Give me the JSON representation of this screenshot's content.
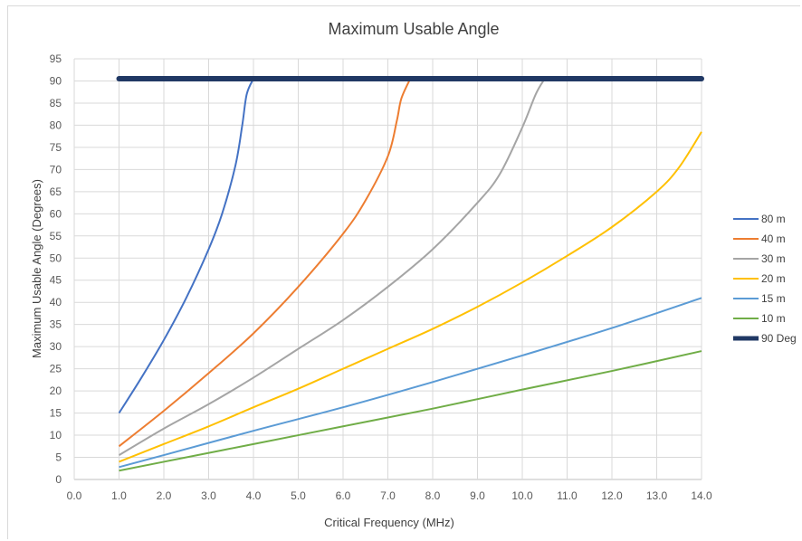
{
  "chart_data": {
    "type": "line",
    "title": "Maximum Usable Angle",
    "xlabel": "Critical Frequency  (MHz)",
    "ylabel": "Maximum Usable Angle  (Degrees)",
    "xlim": [
      0,
      14
    ],
    "ylim": [
      0,
      95
    ],
    "x_ticks": [
      "0.0",
      "1.0",
      "2.0",
      "3.0",
      "4.0",
      "5.0",
      "6.0",
      "7.0",
      "8.0",
      "9.0",
      "10.0",
      "11.0",
      "12.0",
      "13.0",
      "14.0"
    ],
    "y_ticks": [
      "0",
      "5",
      "10",
      "15",
      "20",
      "25",
      "30",
      "35",
      "40",
      "45",
      "50",
      "55",
      "60",
      "65",
      "70",
      "75",
      "80",
      "85",
      "90",
      "95"
    ],
    "grid": true,
    "legend_position": "right",
    "series": [
      {
        "name": "80 m",
        "color": "#4472C4",
        "width": 2,
        "x": [
          1.0,
          1.5,
          2.0,
          2.5,
          3.0,
          3.3,
          3.6,
          3.75,
          3.85,
          4.0
        ],
        "y": [
          15,
          23,
          31.5,
          41,
          52,
          60,
          71,
          80,
          87,
          90.5
        ]
      },
      {
        "name": "40 m",
        "color": "#ED7D31",
        "width": 2,
        "x": [
          1.0,
          2.0,
          3.0,
          4.0,
          5.0,
          6.0,
          6.5,
          7.0,
          7.2,
          7.3,
          7.5
        ],
        "y": [
          7.5,
          15.5,
          24,
          33,
          43.5,
          55.5,
          63,
          73,
          81,
          86,
          90.5
        ]
      },
      {
        "name": "30 m",
        "color": "#A5A5A5",
        "width": 2,
        "x": [
          1.0,
          2.0,
          3.0,
          4.0,
          5.0,
          6.0,
          7.0,
          8.0,
          9.0,
          9.5,
          10.0,
          10.3,
          10.5
        ],
        "y": [
          5.5,
          11.5,
          17,
          23,
          29.5,
          36,
          43.5,
          52,
          62.5,
          69,
          79.5,
          87,
          90.5
        ]
      },
      {
        "name": "20 m",
        "color": "#FFC000",
        "width": 2,
        "x": [
          1.0,
          2.0,
          3.0,
          4.0,
          5.0,
          6.0,
          7.0,
          8.0,
          9.0,
          10.0,
          11.0,
          12.0,
          13.0,
          13.5,
          14.0
        ],
        "y": [
          4,
          8,
          12,
          16.3,
          20.5,
          25,
          29.5,
          34,
          39,
          44.5,
          50.5,
          57,
          65,
          70.5,
          78.5
        ]
      },
      {
        "name": "15 m",
        "color": "#5B9BD5",
        "width": 2,
        "x": [
          1.0,
          2.0,
          4.0,
          6.0,
          8.0,
          10.0,
          12.0,
          14.0
        ],
        "y": [
          2.8,
          5.5,
          11,
          16.3,
          22,
          28,
          34.2,
          41
        ]
      },
      {
        "name": "10 m",
        "color": "#70AD47",
        "width": 2,
        "x": [
          1.0,
          2.0,
          4.0,
          6.0,
          8.0,
          10.0,
          12.0,
          14.0
        ],
        "y": [
          2,
          4,
          8,
          12,
          16,
          20.3,
          24.5,
          29
        ]
      },
      {
        "name": "90 Deg",
        "color": "#203864",
        "width": 6,
        "x": [
          1.0,
          14.0
        ],
        "y": [
          90.5,
          90.5
        ]
      }
    ]
  }
}
